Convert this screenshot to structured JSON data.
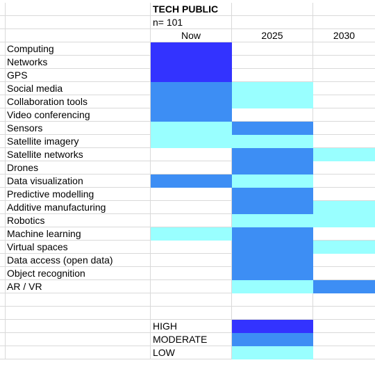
{
  "title": "TECH PUBLIC",
  "sample": "n= 101",
  "columns": [
    "Now",
    "2025",
    "2030"
  ],
  "colors": {
    "HIGH": "#3333ff",
    "MODERATE": "#3d8ef4",
    "LOW": "#99ffff"
  },
  "rows": [
    {
      "label": "Computing",
      "levels": [
        "HIGH",
        "",
        ""
      ]
    },
    {
      "label": "Networks",
      "levels": [
        "HIGH",
        "",
        ""
      ]
    },
    {
      "label": "GPS",
      "levels": [
        "HIGH",
        "",
        ""
      ]
    },
    {
      "label": "Social media",
      "levels": [
        "MODERATE",
        "LOW",
        ""
      ]
    },
    {
      "label": "Collaboration tools",
      "levels": [
        "MODERATE",
        "LOW",
        ""
      ]
    },
    {
      "label": "Video conferencing",
      "levels": [
        "MODERATE",
        "",
        ""
      ]
    },
    {
      "label": "Sensors",
      "levels": [
        "LOW",
        "MODERATE",
        ""
      ]
    },
    {
      "label": "Satellite imagery",
      "levels": [
        "LOW",
        "LOW",
        ""
      ]
    },
    {
      "label": "Satellite networks",
      "levels": [
        "",
        "MODERATE",
        "LOW"
      ]
    },
    {
      "label": "Drones",
      "levels": [
        "",
        "MODERATE",
        ""
      ]
    },
    {
      "label": "Data visualization",
      "levels": [
        "MODERATE",
        "LOW",
        ""
      ]
    },
    {
      "label": "Predictive modelling",
      "levels": [
        "",
        "MODERATE",
        ""
      ]
    },
    {
      "label": "Additive manufacturing",
      "levels": [
        "",
        "MODERATE",
        "LOW"
      ]
    },
    {
      "label": "Robotics",
      "levels": [
        "",
        "LOW",
        "LOW"
      ]
    },
    {
      "label": "Machine learning",
      "levels": [
        "LOW",
        "MODERATE",
        ""
      ]
    },
    {
      "label": "Virtual spaces",
      "levels": [
        "",
        "MODERATE",
        "LOW"
      ]
    },
    {
      "label": "Data access (open data)",
      "levels": [
        "",
        "MODERATE",
        ""
      ]
    },
    {
      "label": "Object recognition",
      "levels": [
        "",
        "MODERATE",
        ""
      ]
    },
    {
      "label": "AR / VR",
      "levels": [
        "",
        "LOW",
        "MODERATE"
      ]
    }
  ],
  "legend": [
    {
      "label": "HIGH",
      "level": "HIGH"
    },
    {
      "label": "MODERATE",
      "level": "MODERATE"
    },
    {
      "label": "LOW",
      "level": "LOW"
    }
  ]
}
